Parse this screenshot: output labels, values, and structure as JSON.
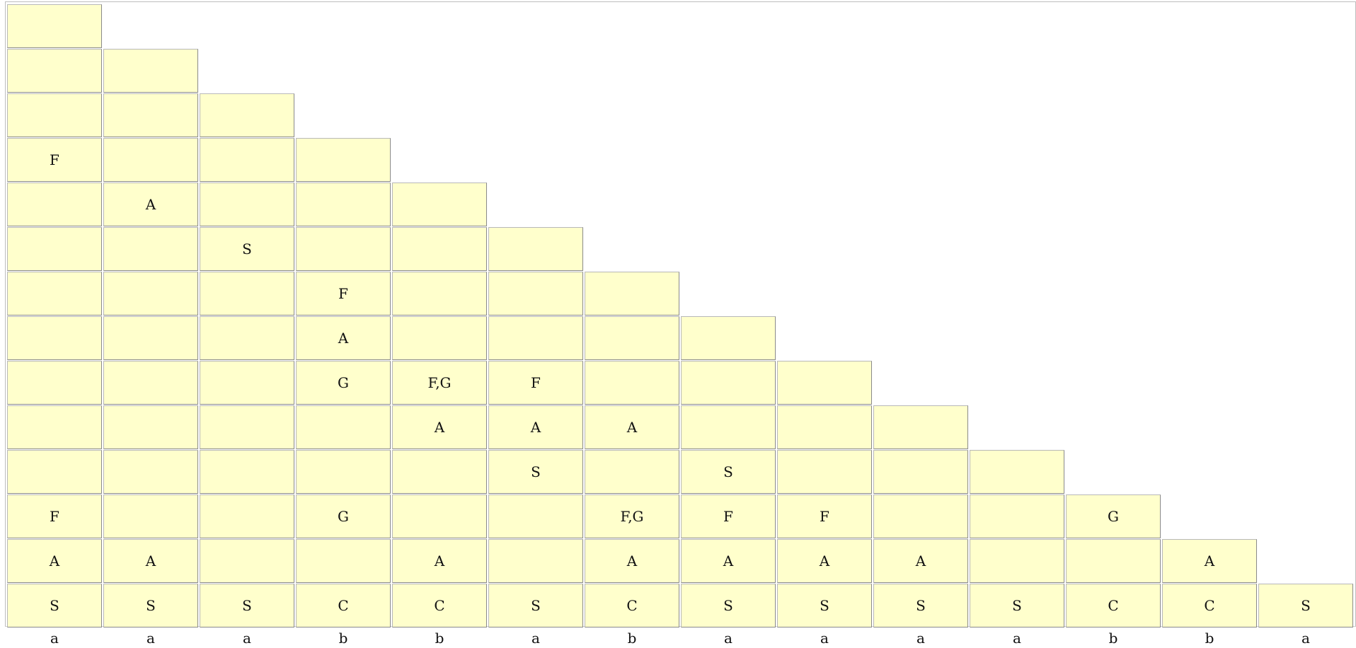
{
  "diagram": {
    "type": "cyk-parse-chart",
    "input_tokens": [
      "a",
      "a",
      "a",
      "b",
      "b",
      "a",
      "b",
      "a",
      "a",
      "a",
      "a",
      "b",
      "b",
      "a"
    ],
    "rows": [
      [
        ""
      ],
      [
        "",
        ""
      ],
      [
        "",
        "",
        ""
      ],
      [
        "F",
        "",
        "",
        ""
      ],
      [
        "",
        "A",
        "",
        "",
        ""
      ],
      [
        "",
        "",
        "S",
        "",
        "",
        ""
      ],
      [
        "",
        "",
        "",
        "F",
        "",
        "",
        ""
      ],
      [
        "",
        "",
        "",
        "A",
        "",
        "",
        "",
        ""
      ],
      [
        "",
        "",
        "",
        "G",
        "F,G",
        "F",
        "",
        "",
        ""
      ],
      [
        "",
        "",
        "",
        "",
        "A",
        "A",
        "A",
        "",
        "",
        ""
      ],
      [
        "",
        "",
        "",
        "",
        "",
        "S",
        "",
        "S",
        "",
        "",
        ""
      ],
      [
        "F",
        "",
        "",
        "G",
        "",
        "",
        "F,G",
        "F",
        "F",
        "",
        "",
        "G"
      ],
      [
        "A",
        "A",
        "",
        "",
        "A",
        "",
        "A",
        "A",
        "A",
        "A",
        "",
        "",
        "A"
      ],
      [
        "S",
        "S",
        "S",
        "C",
        "C",
        "S",
        "C",
        "S",
        "S",
        "S",
        "S",
        "C",
        "C",
        "S"
      ]
    ],
    "colors": {
      "cell_fill": "#ffffcc",
      "cell_border": "#9c9c9c",
      "frame_border": "#bdbdbd",
      "background": "#ffffff"
    }
  }
}
